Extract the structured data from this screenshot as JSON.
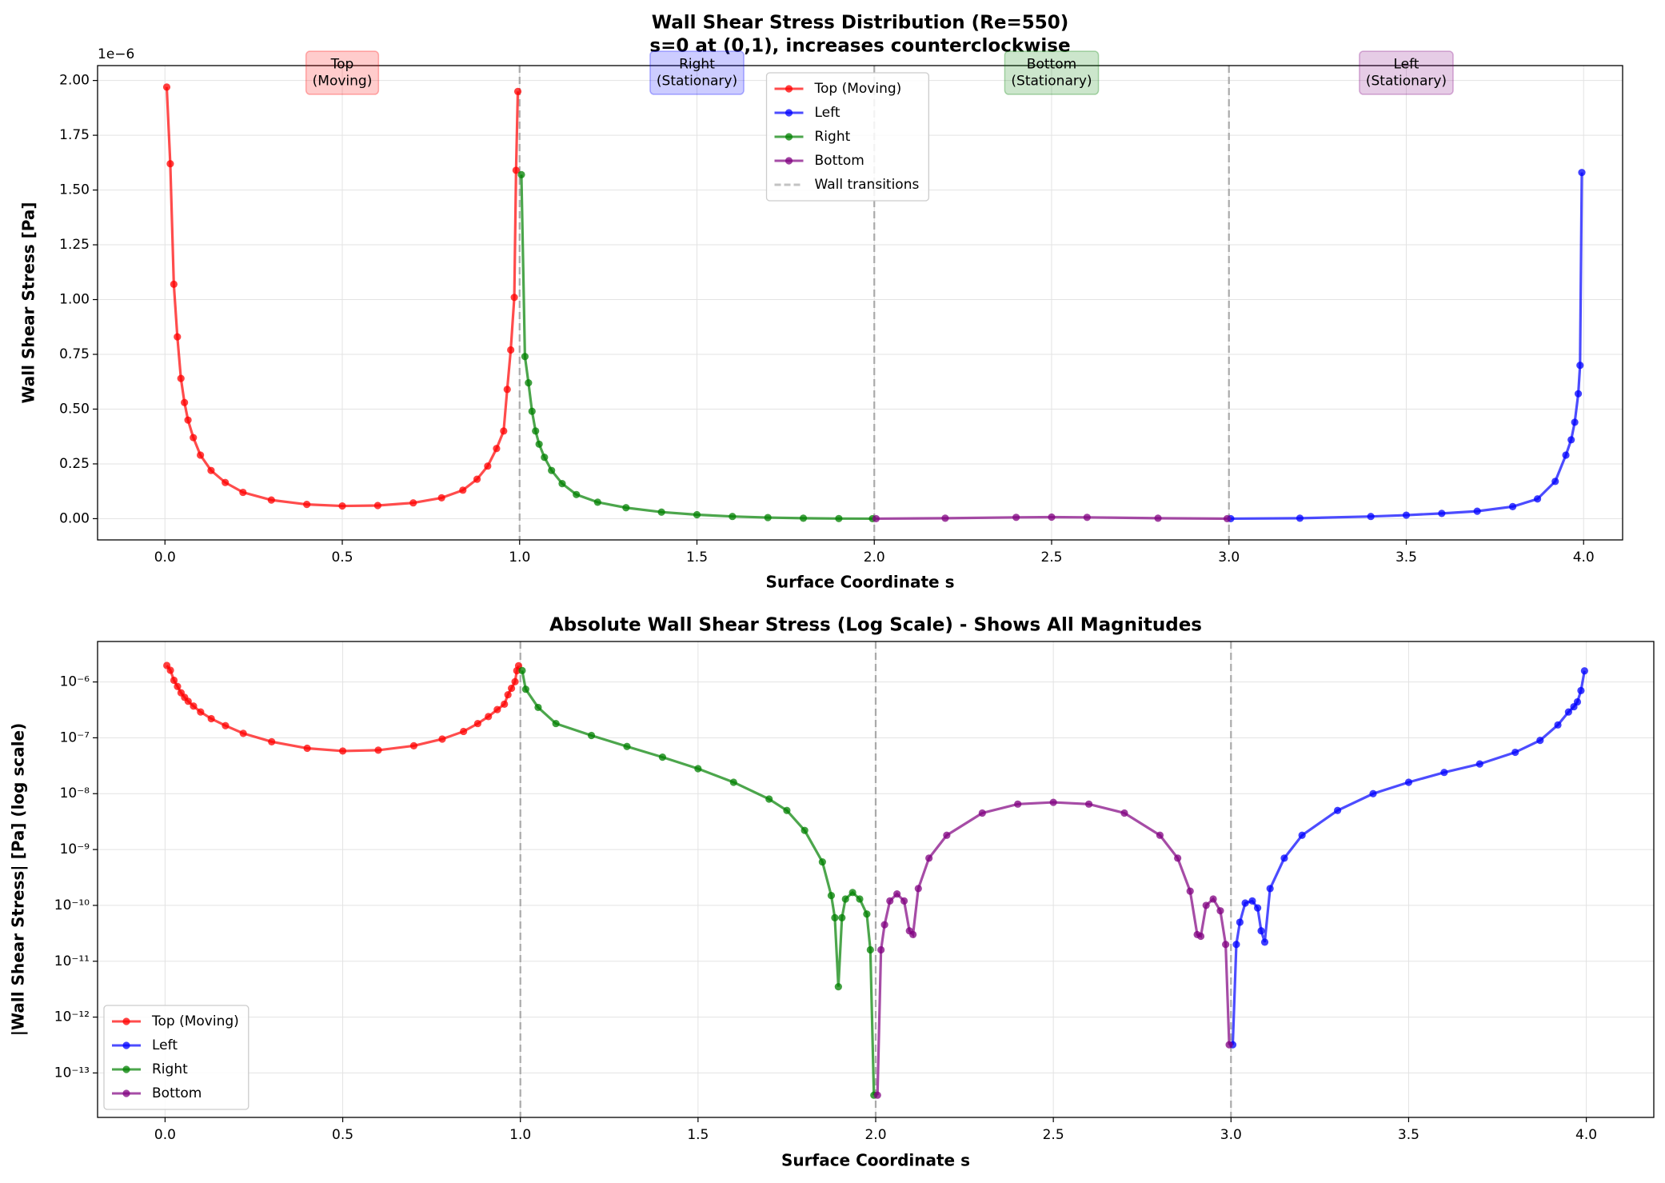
{
  "chart_data": [
    {
      "type": "line",
      "title": "Wall Shear Stress Distribution (Re=550)\ns=0 at (0,1), increases counterclockwise",
      "x_label": "Surface Coordinate s",
      "y_label": "Wall Shear Stress [Pa]",
      "y_offset_text": "1e−6",
      "xlim": [
        -0.19,
        4.11
      ],
      "ylim": [
        -0.097,
        2.068
      ],
      "xticks": [
        {
          "value": 0,
          "label": "0.0"
        },
        {
          "value": 0.5,
          "label": "0.5"
        },
        {
          "value": 1,
          "label": "1.0"
        },
        {
          "value": 1.5,
          "label": "1.5"
        },
        {
          "value": 2,
          "label": "2.0"
        },
        {
          "value": 2.5,
          "label": "2.5"
        },
        {
          "value": 3,
          "label": "3.0"
        },
        {
          "value": 3.5,
          "label": "3.5"
        },
        {
          "value": 4,
          "label": "4.0"
        }
      ],
      "yticks": [
        {
          "value": 0,
          "label": "0.00"
        },
        {
          "value": 0.25,
          "label": "0.25"
        },
        {
          "value": 0.5,
          "label": "0.50"
        },
        {
          "value": 0.75,
          "label": "0.75"
        },
        {
          "value": 1,
          "label": "1.00"
        },
        {
          "value": 1.25,
          "label": "1.25"
        },
        {
          "value": 1.5,
          "label": "1.50"
        },
        {
          "value": 1.75,
          "label": "1.75"
        },
        {
          "value": 2,
          "label": "2.00"
        }
      ],
      "grid": true,
      "legend": "upper center",
      "vlines": {
        "name": "Wall transitions",
        "x": [
          1,
          2,
          3
        ],
        "color": "#aaaaaa"
      },
      "annotations": [
        {
          "text": "Top\n(Moving)",
          "x": 0.5,
          "color": "#ff0000"
        },
        {
          "text": "Right\n(Stationary)",
          "x": 1.5,
          "color": "#0000ff"
        },
        {
          "text": "Bottom\n(Stationary)",
          "x": 2.5,
          "color": "#008000"
        },
        {
          "text": "Left\n(Stationary)",
          "x": 3.5,
          "color": "#800080"
        }
      ],
      "series": [
        {
          "name": "Top (Moving)",
          "color": "#ff0000",
          "x": [
            0.005,
            0.015,
            0.025,
            0.035,
            0.045,
            0.055,
            0.065,
            0.08,
            0.1,
            0.13,
            0.17,
            0.22,
            0.3,
            0.4,
            0.5,
            0.6,
            0.7,
            0.78,
            0.84,
            0.88,
            0.91,
            0.935,
            0.955,
            0.965,
            0.975,
            0.985,
            0.99,
            0.995
          ],
          "values": [
            1.97,
            1.62,
            1.07,
            0.83,
            0.64,
            0.53,
            0.45,
            0.37,
            0.29,
            0.22,
            0.165,
            0.12,
            0.085,
            0.065,
            0.058,
            0.06,
            0.072,
            0.095,
            0.13,
            0.18,
            0.24,
            0.32,
            0.4,
            0.59,
            0.77,
            1.01,
            1.59,
            1.95
          ]
        },
        {
          "name": "Left",
          "color": "#0000ff",
          "x": [
            3.005,
            3.2,
            3.4,
            3.5,
            3.6,
            3.7,
            3.8,
            3.87,
            3.92,
            3.95,
            3.965,
            3.975,
            3.985,
            3.99,
            3.995
          ],
          "values": [
            0,
            0.002,
            0.01,
            0.016,
            0.024,
            0.034,
            0.055,
            0.09,
            0.17,
            0.29,
            0.36,
            0.44,
            0.57,
            0.7,
            1.58
          ]
        },
        {
          "name": "Right",
          "color": "#008000",
          "x": [
            1.005,
            1.015,
            1.025,
            1.035,
            1.045,
            1.055,
            1.07,
            1.09,
            1.12,
            1.16,
            1.22,
            1.3,
            1.4,
            1.5,
            1.6,
            1.7,
            1.8,
            1.9,
            1.995
          ],
          "values": [
            1.57,
            0.74,
            0.62,
            0.49,
            0.4,
            0.34,
            0.28,
            0.22,
            0.16,
            0.11,
            0.075,
            0.05,
            0.03,
            0.018,
            0.01,
            0.005,
            0.002,
            0.0005,
            0
          ]
        },
        {
          "name": "Bottom",
          "color": "#800080",
          "x": [
            2.005,
            2.2,
            2.4,
            2.5,
            2.6,
            2.8,
            2.995
          ],
          "values": [
            0,
            0.002,
            0.006,
            0.007,
            0.006,
            0.002,
            0
          ]
        }
      ]
    },
    {
      "type": "line",
      "yscale": "log",
      "title": "Absolute Wall Shear Stress (Log Scale) - Shows All Magnitudes",
      "x_label": "Surface Coordinate s",
      "y_label": "|Wall Shear Stress| [Pa] (log scale)",
      "xlim": [
        -0.19,
        4.19
      ],
      "ylim": [
        1.6e-14,
        5.3e-06
      ],
      "xticks": [
        {
          "value": 0,
          "label": "0.0"
        },
        {
          "value": 0.5,
          "label": "0.5"
        },
        {
          "value": 1,
          "label": "1.0"
        },
        {
          "value": 1.5,
          "label": "1.5"
        },
        {
          "value": 2,
          "label": "2.0"
        },
        {
          "value": 2.5,
          "label": "2.5"
        },
        {
          "value": 3,
          "label": "3.0"
        },
        {
          "value": 3.5,
          "label": "3.5"
        },
        {
          "value": 4,
          "label": "4.0"
        }
      ],
      "yticks": [
        {
          "value": 1e-13,
          "label": "10⁻¹³"
        },
        {
          "value": 1e-12,
          "label": "10⁻¹²"
        },
        {
          "value": 1e-11,
          "label": "10⁻¹¹"
        },
        {
          "value": 1e-10,
          "label": "10⁻¹⁰"
        },
        {
          "value": 1e-09,
          "label": "10⁻⁹"
        },
        {
          "value": 1e-08,
          "label": "10⁻⁸"
        },
        {
          "value": 1e-07,
          "label": "10⁻⁷"
        },
        {
          "value": 1e-06,
          "label": "10⁻⁶"
        }
      ],
      "grid": true,
      "legend": "lower left",
      "vlines": {
        "x": [
          1,
          2,
          3
        ],
        "color": "#aaaaaa"
      },
      "series": [
        {
          "name": "Top (Moving)",
          "color": "#ff0000",
          "x": [
            0.005,
            0.015,
            0.025,
            0.035,
            0.045,
            0.055,
            0.065,
            0.08,
            0.1,
            0.13,
            0.17,
            0.22,
            0.3,
            0.4,
            0.5,
            0.6,
            0.7,
            0.78,
            0.84,
            0.88,
            0.91,
            0.935,
            0.955,
            0.965,
            0.975,
            0.985,
            0.99,
            0.995
          ],
          "values": [
            1.97e-06,
            1.62e-06,
            1.07e-06,
            8.3e-07,
            6.4e-07,
            5.3e-07,
            4.5e-07,
            3.7e-07,
            2.9e-07,
            2.2e-07,
            1.65e-07,
            1.2e-07,
            8.5e-08,
            6.5e-08,
            5.8e-08,
            6e-08,
            7.2e-08,
            9.5e-08,
            1.3e-07,
            1.8e-07,
            2.4e-07,
            3.2e-07,
            4e-07,
            5.9e-07,
            7.7e-07,
            1.01e-06,
            1.59e-06,
            1.95e-06
          ]
        },
        {
          "name": "Left",
          "color": "#0000ff",
          "x": [
            3.005,
            3.015,
            3.025,
            3.04,
            3.06,
            3.075,
            3.085,
            3.095,
            3.11,
            3.15,
            3.2,
            3.3,
            3.4,
            3.5,
            3.6,
            3.7,
            3.8,
            3.87,
            3.92,
            3.95,
            3.965,
            3.975,
            3.985,
            3.995
          ],
          "values": [
            3.2e-13,
            2e-11,
            5e-11,
            1.1e-10,
            1.2e-10,
            9e-11,
            3.5e-11,
            2.2e-11,
            2e-10,
            7e-10,
            1.8e-09,
            5e-09,
            1e-08,
            1.6e-08,
            2.4e-08,
            3.4e-08,
            5.5e-08,
            9e-08,
            1.7e-07,
            2.9e-07,
            3.6e-07,
            4.4e-07,
            7e-07,
            1.58e-06
          ]
        },
        {
          "name": "Right",
          "color": "#008000",
          "x": [
            1.005,
            1.015,
            1.05,
            1.1,
            1.2,
            1.3,
            1.4,
            1.5,
            1.6,
            1.7,
            1.75,
            1.8,
            1.85,
            1.875,
            1.885,
            1.895,
            1.905,
            1.915,
            1.935,
            1.955,
            1.975,
            1.985,
            1.995
          ],
          "values": [
            1.6e-06,
            7.4e-07,
            3.5e-07,
            1.8e-07,
            1.1e-07,
            7e-08,
            4.5e-08,
            2.8e-08,
            1.6e-08,
            8e-09,
            5e-09,
            2.2e-09,
            6e-10,
            1.5e-10,
            6e-11,
            3.5e-12,
            6e-11,
            1.3e-10,
            1.7e-10,
            1.3e-10,
            7e-11,
            1.6e-11,
            4e-14
          ]
        },
        {
          "name": "Bottom",
          "color": "#800080",
          "x": [
            2.005,
            2.015,
            2.025,
            2.04,
            2.06,
            2.08,
            2.095,
            2.105,
            2.12,
            2.15,
            2.2,
            2.3,
            2.4,
            2.5,
            2.6,
            2.7,
            2.8,
            2.85,
            2.885,
            2.905,
            2.915,
            2.93,
            2.95,
            2.97,
            2.985,
            2.995
          ],
          "values": [
            4e-14,
            1.6e-11,
            4.5e-11,
            1.2e-10,
            1.6e-10,
            1.2e-10,
            3.5e-11,
            3e-11,
            2e-10,
            7e-10,
            1.8e-09,
            4.5e-09,
            6.5e-09,
            7e-09,
            6.5e-09,
            4.5e-09,
            1.8e-09,
            7e-10,
            1.8e-10,
            3e-11,
            2.8e-11,
            1e-10,
            1.3e-10,
            8e-11,
            2e-11,
            3.2e-13
          ]
        }
      ]
    }
  ]
}
